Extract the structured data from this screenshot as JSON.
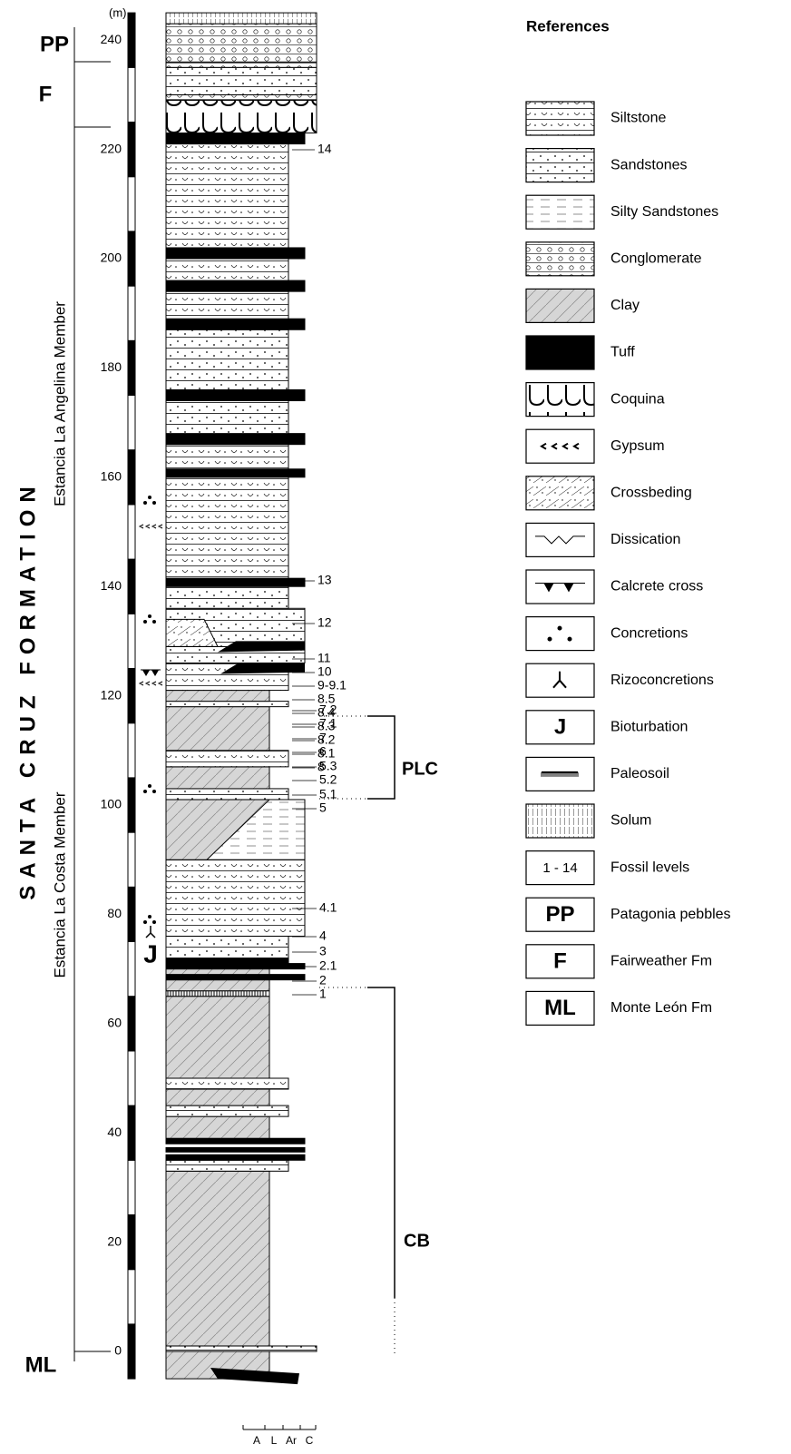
{
  "column": {
    "scale_unit": "(m)",
    "scale_ticks": [
      "240",
      "220",
      "200",
      "180",
      "160",
      "140",
      "120",
      "100",
      "80",
      "60",
      "40",
      "20",
      "0"
    ],
    "units": [
      "PP",
      "F",
      "ML"
    ],
    "formation": "SANTA CRUZ FORMATION",
    "members": [
      "Estancia La Angelina Member",
      "Estancia La Costa Member"
    ],
    "bioturbation_symbol": "J",
    "fossil_levels": [
      "14",
      "13",
      "12",
      "11",
      "10",
      "9-9.1",
      "8.5",
      "8.4",
      "8.3",
      "8.2",
      "8.1",
      "8",
      "7.2",
      "7.1",
      "7",
      "6",
      "5.3",
      "5.2",
      "5.1",
      "5",
      "4.1",
      "4",
      "3",
      "2.1",
      "2",
      "1"
    ],
    "brackets": [
      "PLC",
      "CB"
    ],
    "grain_size": [
      "A",
      "L",
      "Ar",
      "C"
    ]
  },
  "references": {
    "title": "References",
    "items": [
      {
        "label": "Siltstone"
      },
      {
        "label": "Sandstones"
      },
      {
        "label": "Silty Sandstones"
      },
      {
        "label": "Conglomerate"
      },
      {
        "label": "Clay"
      },
      {
        "label": "Tuff"
      },
      {
        "label": "Coquina"
      },
      {
        "label": "Gypsum"
      },
      {
        "label": "Crossbeding"
      },
      {
        "label": "Dissication"
      },
      {
        "label": "Calcrete cross"
      },
      {
        "label": "Concretions"
      },
      {
        "label": "Rizoconcretions"
      },
      {
        "label": "Bioturbation",
        "symbol": "J"
      },
      {
        "label": "Paleosoil"
      },
      {
        "label": "Solum"
      },
      {
        "label": "Fossil levels",
        "symbol": "1 - 14"
      },
      {
        "label": "Patagonia pebbles",
        "symbol": "PP"
      },
      {
        "label": "Fairweather Fm",
        "symbol": "F"
      },
      {
        "label": "Monte León Fm",
        "symbol": "ML"
      }
    ]
  }
}
